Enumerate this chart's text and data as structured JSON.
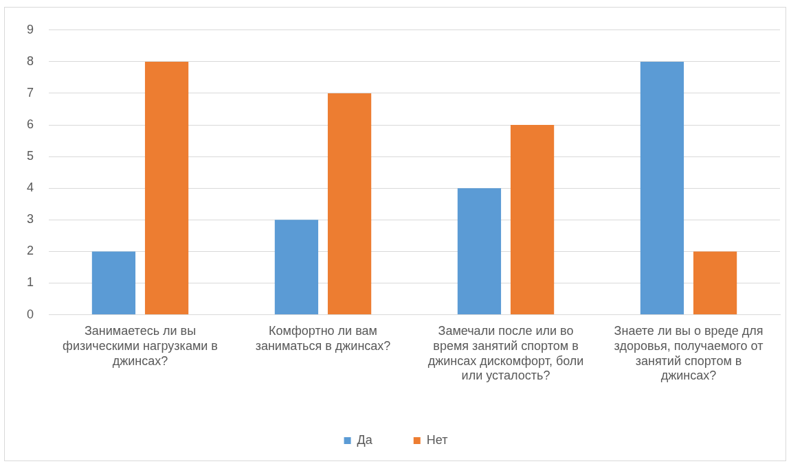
{
  "chart_data": {
    "type": "bar",
    "categories": [
      "Занимаетесь ли вы физическими нагрузками в джинсах?",
      "Комфортно ли вам заниматься в джинсах?",
      "Замечали после или во время занятий спортом в джинсах дискомфорт, боли или усталость?",
      "Знаете ли вы о вреде для здоровья, получаемого от занятий спортом в джинсах?"
    ],
    "series": [
      {
        "name": "Да",
        "color": "#5b9bd5",
        "values": [
          2,
          3,
          4,
          8
        ]
      },
      {
        "name": "Нет",
        "color": "#ed7d31",
        "values": [
          8,
          7,
          6,
          2
        ]
      }
    ],
    "ylim": [
      0,
      9
    ],
    "yticks": [
      0,
      1,
      2,
      3,
      4,
      5,
      6,
      7,
      8,
      9
    ],
    "grid": "y",
    "legend": "bottom"
  }
}
